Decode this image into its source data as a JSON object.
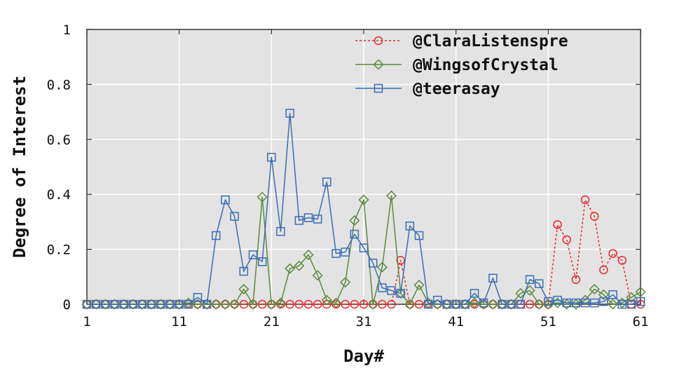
{
  "chart_data": {
    "type": "line",
    "title": "",
    "xlabel": "Day#",
    "ylabel": "Degree of Interest",
    "xlim": [
      1,
      61
    ],
    "ylim": [
      0,
      1
    ],
    "x_ticks": [
      1,
      11,
      21,
      31,
      41,
      51,
      61
    ],
    "y_ticks": [
      0,
      0.2,
      0.4,
      0.6,
      0.8,
      1
    ],
    "y_tick_labels": [
      "0",
      "0.2",
      "0.4",
      "0.6",
      "0.8",
      "1"
    ],
    "grid": true,
    "legend_position": "top-right",
    "x": [
      1,
      2,
      3,
      4,
      5,
      6,
      7,
      8,
      9,
      10,
      11,
      12,
      13,
      14,
      15,
      16,
      17,
      18,
      19,
      20,
      21,
      22,
      23,
      24,
      25,
      26,
      27,
      28,
      29,
      30,
      31,
      32,
      33,
      34,
      35,
      36,
      37,
      38,
      39,
      40,
      41,
      42,
      43,
      44,
      45,
      46,
      47,
      48,
      49,
      50,
      51,
      52,
      53,
      54,
      55,
      56,
      57,
      58,
      59,
      60,
      61
    ],
    "series": [
      {
        "name": "@ClaraListenspre",
        "color": "#e8282a",
        "line_style": "dashed",
        "marker": "circle",
        "values": [
          0,
          0,
          0,
          0,
          0,
          0,
          0,
          0,
          0,
          0,
          0,
          0,
          0,
          0,
          0,
          0,
          0,
          0,
          0,
          0,
          0,
          0,
          0,
          0,
          0,
          0,
          0,
          0,
          0,
          0,
          0,
          0,
          0,
          0,
          0.16,
          0,
          0,
          0,
          0,
          0,
          0,
          0,
          0,
          0,
          0,
          0,
          0,
          0,
          0,
          0,
          0,
          0.29,
          0.235,
          0.09,
          0.38,
          0.32,
          0.125,
          0.185,
          0.16,
          0,
          0
        ]
      },
      {
        "name": "@WingsofCrystal",
        "color": "#5a8a3c",
        "line_style": "solid",
        "marker": "diamond",
        "values": [
          0,
          0,
          0,
          0,
          0,
          0,
          0,
          0,
          0,
          0,
          0,
          0.005,
          0,
          0,
          0,
          0,
          0,
          0.055,
          0,
          0.39,
          0,
          0.005,
          0.13,
          0.14,
          0.18,
          0.105,
          0.015,
          0.005,
          0.08,
          0.305,
          0.38,
          0,
          0.135,
          0.395,
          0.04,
          0,
          0.07,
          0.005,
          0,
          0,
          0,
          0,
          0.005,
          0,
          0,
          0,
          0,
          0.04,
          0.05,
          0,
          0,
          0.005,
          0,
          0,
          0.015,
          0.055,
          0.035,
          0,
          0.005,
          0.025,
          0.045
        ]
      },
      {
        "name": "@teerasay",
        "color": "#3a6db5",
        "line_style": "solid",
        "marker": "square",
        "values": [
          0,
          0,
          0,
          0,
          0,
          0,
          0,
          0,
          0,
          0,
          0,
          0,
          0.025,
          0,
          0.25,
          0.38,
          0.32,
          0.12,
          0.18,
          0.155,
          0.535,
          0.265,
          0.695,
          0.305,
          0.315,
          0.31,
          0.445,
          0.185,
          0.19,
          0.255,
          0.205,
          0.15,
          0.06,
          0.05,
          0.04,
          0.285,
          0.25,
          0,
          0.015,
          0,
          0,
          0,
          0.04,
          0.005,
          0.095,
          0,
          0,
          0,
          0.09,
          0.075,
          0.01,
          0.015,
          0.005,
          0.005,
          0.005,
          0.005,
          0.01,
          0.035,
          0,
          0,
          0.01
        ]
      }
    ]
  }
}
